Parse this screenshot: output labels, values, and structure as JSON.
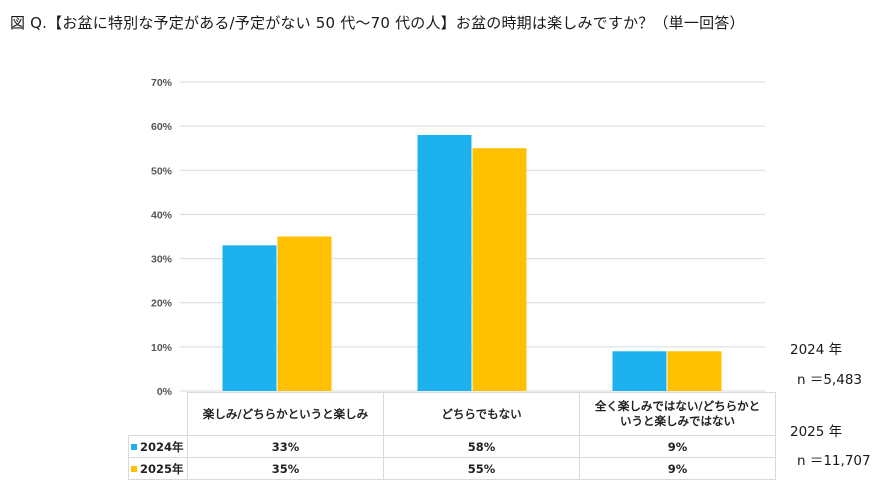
{
  "title": "図 Q.【お盆に特別な予定がある/予定がない 50 代〜70 代の人】お盆の時期は楽しみですか？（単一回答）",
  "colors": {
    "series_2024": "#1EB1F0",
    "series_2025": "#FFC000",
    "grid": "#d9d9d9"
  },
  "chart_data": {
    "type": "bar",
    "categories": [
      "楽しみ/どちらかというと楽しみ",
      "どちらでもない",
      "全く楽しみではない/どちらかというと楽しみではない"
    ],
    "category_lines": [
      [
        "楽しみ/どちらかというと楽しみ"
      ],
      [
        "どちらでもない"
      ],
      [
        "全く楽しみではない/どちらかと",
        "いうと楽しみではない"
      ]
    ],
    "series": [
      {
        "name": "2024年",
        "values": [
          33,
          58,
          9
        ],
        "labels": [
          "33%",
          "58%",
          "9%"
        ]
      },
      {
        "name": "2025年",
        "values": [
          35,
          55,
          9
        ],
        "labels": [
          "35%",
          "55%",
          "9%"
        ]
      }
    ],
    "yticks": [
      "0%",
      "10%",
      "20%",
      "30%",
      "40%",
      "50%",
      "60%",
      "70%"
    ],
    "ylim": [
      0,
      70
    ],
    "grid": true,
    "legend": "data-table"
  },
  "notes": {
    "year_2024": "2024 年",
    "n_2024": "n ＝5,483",
    "year_2025": "2025 年",
    "n_2025": "n ＝11,707"
  }
}
